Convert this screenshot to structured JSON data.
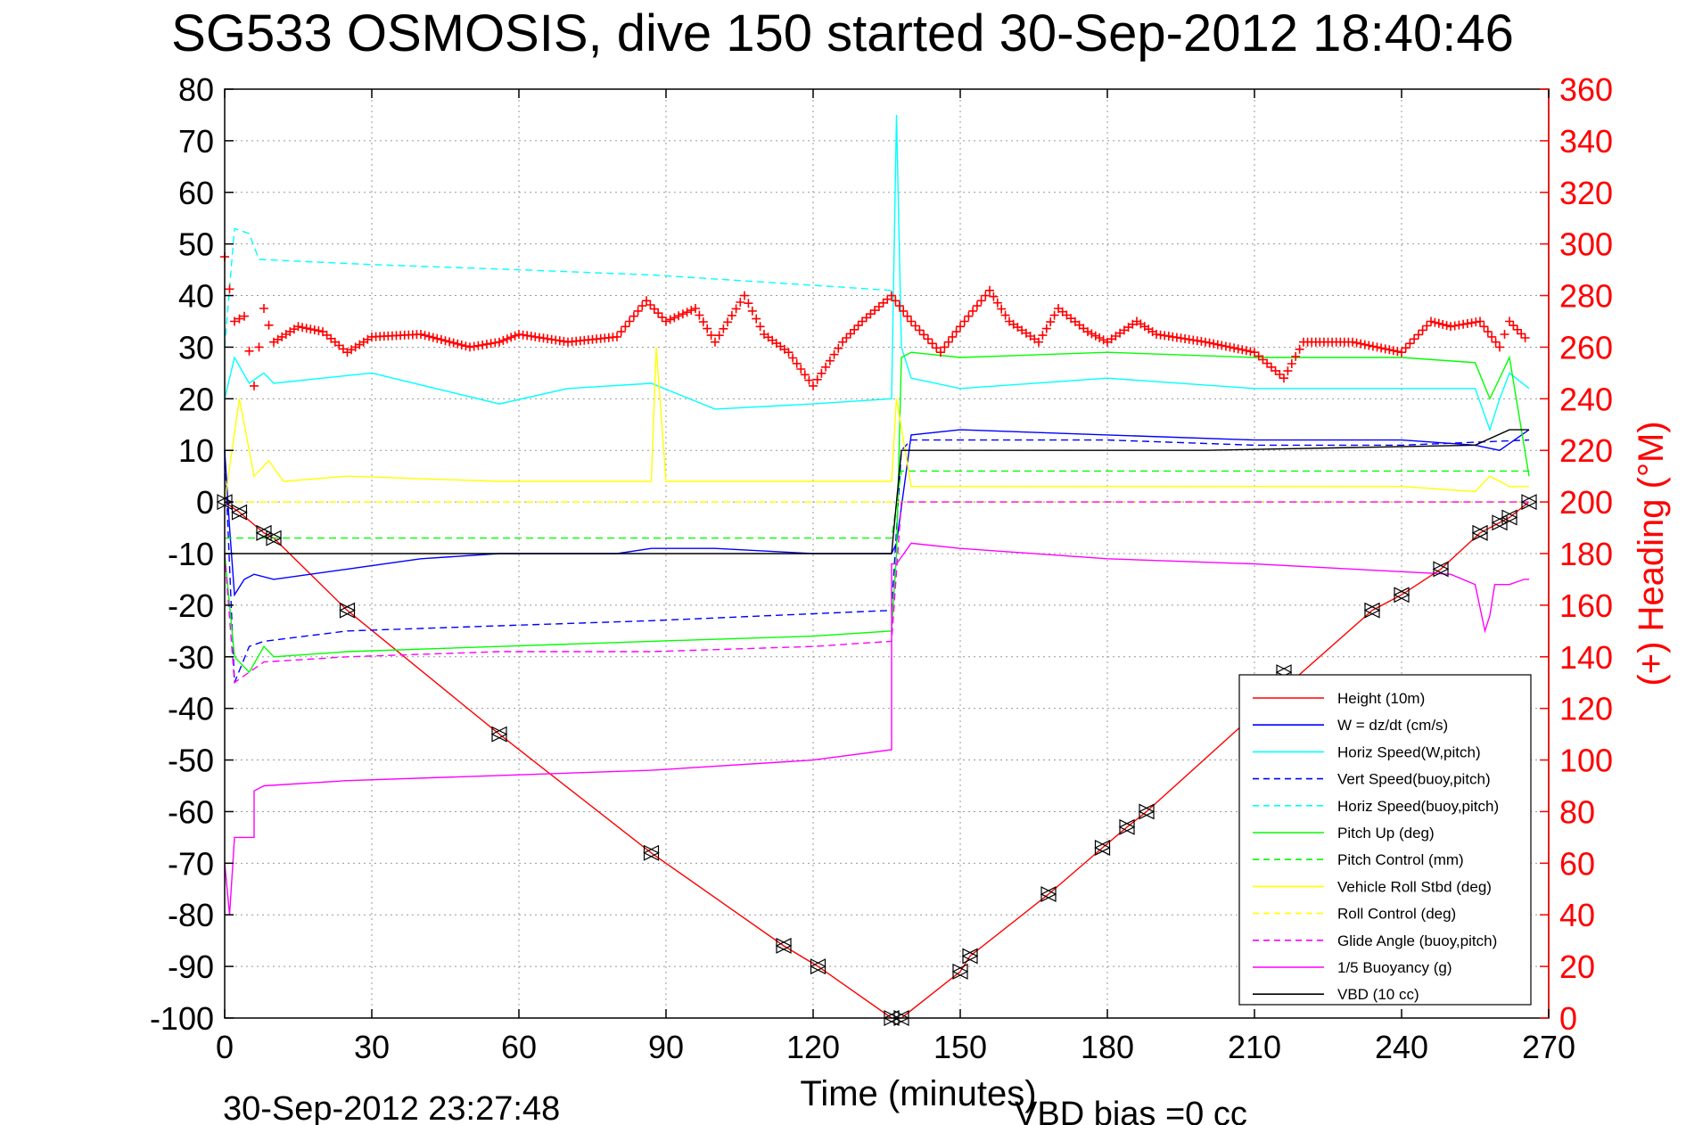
{
  "chart_data": {
    "type": "line",
    "title": "SG533 OSMOSIS, dive 150 started 30-Sep-2012 18:40:46",
    "xlabel": "Time (minutes)",
    "ylabel": "",
    "y2label": "(+) Heading (°M)",
    "footer_left": "30-Sep-2012 23:27:48",
    "footer_right": "VBD bias =0 cc",
    "xlim": [
      0,
      270
    ],
    "ylim": [
      -100,
      80
    ],
    "y2lim": [
      0,
      360
    ],
    "x_ticks": [
      0,
      30,
      60,
      90,
      120,
      150,
      180,
      210,
      240,
      270
    ],
    "y_ticks": [
      80,
      70,
      60,
      50,
      40,
      30,
      20,
      10,
      0,
      -10,
      -20,
      -30,
      -40,
      -50,
      -60,
      -70,
      -80,
      -90,
      -100
    ],
    "y2_ticks": [
      360,
      340,
      320,
      300,
      280,
      260,
      240,
      220,
      200,
      180,
      160,
      140,
      120,
      100,
      80,
      60,
      40,
      20,
      0
    ],
    "grid": true,
    "legend_position": "bottom-right",
    "colors": {
      "right_axis": "#ff0000",
      "height": "#ff0000",
      "w": "#0000ff",
      "horiz": "#00ffff",
      "pitch": "#00ff00",
      "roll": "#ffff00",
      "glide": "#ff00ff",
      "vbd": "#000000",
      "heading": "#ff0000"
    },
    "series": [
      {
        "name": "Height (10m)",
        "key": "height",
        "style": "solid",
        "x": [
          0,
          3,
          8,
          10,
          25,
          56,
          87,
          114,
          121,
          136,
          138,
          150,
          152,
          168,
          179,
          184,
          188,
          209,
          234,
          240,
          248,
          256,
          260,
          262,
          266
        ],
        "y": [
          0,
          -2,
          -6,
          -7,
          -21,
          -45,
          -68,
          -86,
          -90,
          -100,
          -100,
          -91,
          -88,
          -76,
          -67,
          -63,
          -60,
          -42,
          -21,
          -18,
          -13,
          -6,
          -4,
          -3,
          0
        ]
      },
      {
        "name": "W = dz/dt (cm/s)",
        "key": "w",
        "style": "solid",
        "x": [
          0,
          1,
          2,
          4,
          6,
          10,
          25,
          40,
          56,
          80,
          87,
          100,
          120,
          136,
          137,
          140,
          150,
          180,
          210,
          240,
          255,
          260,
          266
        ],
        "y": [
          10,
          -5,
          -18,
          -15,
          -14,
          -15,
          -13,
          -11,
          -10,
          -10,
          -9,
          -9,
          -10,
          -10,
          -8,
          13,
          14,
          13,
          12,
          12,
          11,
          10,
          14
        ]
      },
      {
        "name": "Horiz Speed(W,pitch)",
        "key": "horiz",
        "style": "solid",
        "x": [
          0,
          2,
          5,
          8,
          10,
          30,
          56,
          70,
          87,
          100,
          120,
          136,
          137,
          138,
          140,
          150,
          180,
          210,
          240,
          255,
          258,
          260,
          262,
          266
        ],
        "y": [
          20,
          28,
          23,
          25,
          23,
          25,
          19,
          22,
          23,
          18,
          19,
          20,
          75,
          30,
          24,
          22,
          24,
          22,
          22,
          22,
          14,
          20,
          25,
          22
        ]
      },
      {
        "name": "Vert Speed(buoy,pitch)",
        "key": "w",
        "style": "dashed",
        "x": [
          0,
          2,
          5,
          8,
          25,
          56,
          87,
          136,
          138,
          140,
          150,
          180,
          210,
          240,
          266
        ],
        "y": [
          10,
          -35,
          -28,
          -27,
          -25,
          -24,
          -23,
          -21,
          10,
          12,
          12,
          12,
          11,
          11,
          12
        ]
      },
      {
        "name": "Horiz Speed(buoy,pitch)",
        "key": "horiz",
        "style": "dashed",
        "x": [
          0,
          2,
          5,
          7,
          30,
          60,
          87,
          120,
          136
        ],
        "y": [
          30,
          53,
          52,
          47,
          46,
          45,
          44,
          42,
          41
        ]
      },
      {
        "name": "Pitch Up (deg)",
        "key": "pitch",
        "style": "solid",
        "x": [
          0,
          2,
          5,
          8,
          10,
          25,
          56,
          87,
          120,
          136,
          137,
          138,
          140,
          150,
          180,
          210,
          240,
          255,
          258,
          262,
          266
        ],
        "y": [
          -10,
          -30,
          -33,
          -28,
          -30,
          -29,
          -28,
          -27,
          -26,
          -25,
          -10,
          28,
          29,
          28,
          29,
          28,
          28,
          27,
          20,
          28,
          5
        ]
      },
      {
        "name": "Pitch Control (mm)",
        "key": "pitch",
        "style": "dashed",
        "x": [
          0,
          136,
          138,
          266
        ],
        "y": [
          -7,
          -7,
          6,
          6
        ]
      },
      {
        "name": "Vehicle Roll Stbd (deg)",
        "key": "roll",
        "style": "solid",
        "x": [
          0,
          3,
          6,
          9,
          12,
          25,
          56,
          87,
          88,
          90,
          120,
          136,
          137,
          140,
          150,
          180,
          210,
          240,
          255,
          258,
          262,
          266
        ],
        "y": [
          0,
          20,
          5,
          8,
          4,
          5,
          4,
          4,
          30,
          4,
          4,
          4,
          20,
          3,
          3,
          3,
          3,
          3,
          2,
          5,
          3,
          3
        ]
      },
      {
        "name": "Roll Control (deg)",
        "key": "roll",
        "style": "dashed",
        "x": [
          0,
          266
        ],
        "y": [
          0,
          0
        ]
      },
      {
        "name": "Glide Angle (buoy,pitch)",
        "key": "glide",
        "style": "dashed",
        "x": [
          0,
          2,
          5,
          8,
          25,
          56,
          87,
          120,
          136,
          138,
          266
        ],
        "y": [
          -10,
          -35,
          -33,
          -31,
          -30,
          -29,
          -29,
          -28,
          -27,
          0,
          0
        ]
      },
      {
        "name": "1/5 Buoyancy (g)",
        "key": "glide",
        "style": "solid",
        "x": [
          0,
          1,
          2,
          6,
          6,
          8,
          25,
          56,
          87,
          120,
          136,
          136,
          137,
          140,
          150,
          180,
          210,
          250,
          255,
          257,
          258,
          259,
          262,
          265,
          266
        ],
        "y": [
          -70,
          -80,
          -65,
          -65,
          -56,
          -55,
          -54,
          -53,
          -52,
          -50,
          -48,
          -12,
          -12,
          -8,
          -9,
          -11,
          -12,
          -14,
          -16,
          -25,
          -22,
          -16,
          -16,
          -15,
          -15
        ]
      },
      {
        "name": "VBD (10 cc)",
        "key": "vbd",
        "style": "solid",
        "x": [
          0,
          136,
          138,
          140,
          200,
          255,
          262,
          266
        ],
        "y": [
          -10,
          -10,
          10,
          10,
          10,
          11,
          14,
          14
        ]
      }
    ],
    "heading": {
      "name": "(+) Heading",
      "x": [
        0,
        2,
        4,
        6,
        8,
        10,
        15,
        20,
        25,
        30,
        40,
        50,
        56,
        60,
        70,
        80,
        86,
        90,
        96,
        100,
        106,
        110,
        115,
        120,
        126,
        130,
        136,
        140,
        146,
        150,
        156,
        160,
        166,
        170,
        176,
        180,
        186,
        190,
        200,
        210,
        216,
        220,
        230,
        240,
        246,
        250,
        256,
        260,
        262,
        266
      ],
      "y": [
        295,
        270,
        272,
        245,
        275,
        262,
        268,
        266,
        258,
        264,
        265,
        260,
        262,
        265,
        262,
        264,
        278,
        270,
        275,
        262,
        280,
        265,
        258,
        245,
        262,
        270,
        280,
        270,
        258,
        268,
        282,
        270,
        262,
        275,
        266,
        262,
        270,
        265,
        262,
        258,
        248,
        262,
        262,
        258,
        270,
        268,
        270,
        260,
        270,
        262
      ]
    },
    "markers": {
      "x": [
        0,
        3,
        8,
        10,
        25,
        56,
        87,
        114,
        121,
        136,
        138,
        150,
        152,
        168,
        179,
        184,
        188,
        216,
        234,
        240,
        248,
        256,
        260,
        262,
        266
      ],
      "y": [
        0,
        -2,
        -6,
        -7,
        -21,
        -45,
        -68,
        -86,
        -90,
        -100,
        -100,
        -91,
        -88,
        -76,
        -67,
        -63,
        -60,
        -33,
        -21,
        -18,
        -13,
        -6,
        -4,
        -3,
        0
      ]
    }
  }
}
